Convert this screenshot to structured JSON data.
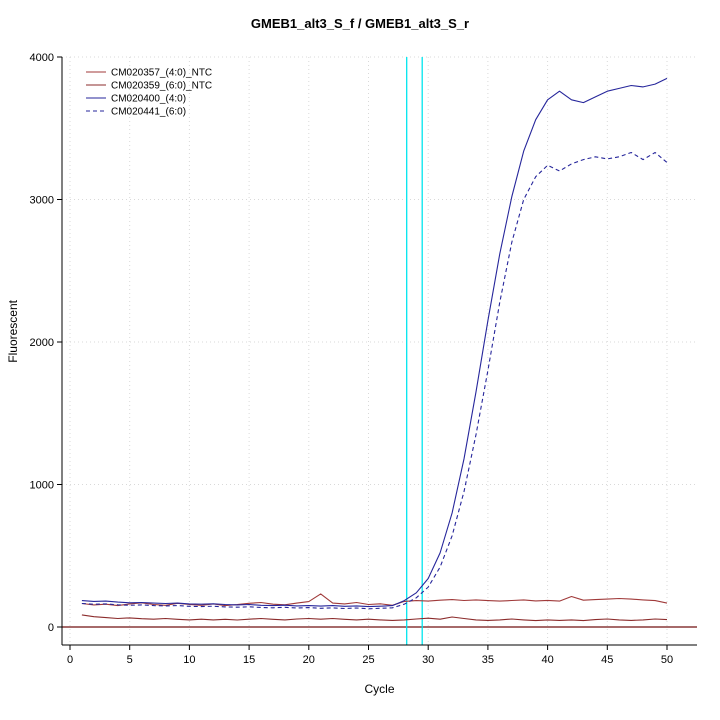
{
  "chart_data": {
    "type": "line",
    "title": "GMEB1_alt3_S_f / GMEB1_alt3_S_r",
    "xlabel": "Cycle",
    "ylabel": "Fluorescent",
    "x_start": 1,
    "xlim": [
      -0.7,
      52.6
    ],
    "ylim": [
      -130,
      4120
    ],
    "x_ticks": [
      0,
      5,
      10,
      15,
      20,
      25,
      30,
      35,
      40,
      45,
      50
    ],
    "y_ticks": [
      0,
      1000,
      2000,
      3000,
      4000
    ],
    "grid": "dotted-lightgray",
    "legend_position": "top-left",
    "threshold_lines": {
      "vertical_x": [
        28.2,
        29.5
      ],
      "vertical_color": "#00E5EE",
      "horizontal_y": 0,
      "horizontal_color": "#701010"
    },
    "series": [
      {
        "name": "CM020357_(4:0)_NTC",
        "color": "#A03A3A",
        "dash": "solid",
        "values": [
          165,
          155,
          160,
          150,
          162,
          170,
          158,
          152,
          166,
          158,
          152,
          162,
          150,
          157,
          166,
          172,
          160,
          156,
          168,
          178,
          232,
          168,
          162,
          172,
          158,
          163,
          152,
          180,
          185,
          182,
          188,
          192,
          186,
          190,
          185,
          182,
          186,
          190,
          183,
          187,
          182,
          214,
          188,
          192,
          196,
          200,
          196,
          190,
          185,
          168
        ]
      },
      {
        "name": "CM020359_(6:0)_NTC",
        "color": "#8B2B2B",
        "dash": "solid",
        "values": [
          85,
          72,
          66,
          60,
          64,
          58,
          55,
          60,
          54,
          50,
          55,
          50,
          54,
          49,
          55,
          60,
          54,
          50,
          56,
          60,
          55,
          60,
          54,
          50,
          55,
          50,
          46,
          50,
          56,
          62,
          55,
          70,
          60,
          50,
          46,
          50,
          56,
          50,
          45,
          50,
          46,
          50,
          45,
          52,
          56,
          50,
          46,
          50,
          56,
          52
        ]
      },
      {
        "name": "CM020400_(4:0)",
        "color": "#26269B",
        "dash": "solid",
        "values": [
          185,
          180,
          182,
          175,
          170,
          172,
          168,
          165,
          168,
          162,
          160,
          163,
          158,
          155,
          158,
          152,
          150,
          153,
          148,
          150,
          147,
          150,
          145,
          148,
          143,
          146,
          150,
          185,
          240,
          340,
          520,
          800,
          1180,
          1650,
          2150,
          2620,
          3020,
          3340,
          3560,
          3700,
          3760,
          3700,
          3680,
          3720,
          3760,
          3780,
          3800,
          3790,
          3810,
          3850
        ]
      },
      {
        "name": "CM020441_(6:0)",
        "color": "#26269B",
        "dash": "4,3",
        "values": [
          165,
          160,
          162,
          156,
          152,
          155,
          150,
          148,
          150,
          145,
          143,
          146,
          141,
          139,
          142,
          137,
          135,
          138,
          133,
          136,
          131,
          134,
          130,
          133,
          128,
          131,
          135,
          160,
          205,
          280,
          420,
          640,
          950,
          1350,
          1800,
          2280,
          2700,
          3000,
          3160,
          3240,
          3200,
          3250,
          3280,
          3300,
          3285,
          3300,
          3330,
          3280,
          3330,
          3260
        ]
      }
    ]
  }
}
